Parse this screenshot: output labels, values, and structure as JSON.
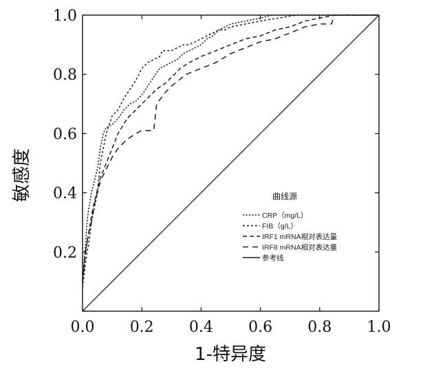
{
  "chart_data": {
    "type": "line",
    "title": "",
    "xlabel": "1-特异度",
    "ylabel": "敏感度",
    "xlim": [
      0,
      1
    ],
    "ylim": [
      0,
      1
    ],
    "xticks": [
      "0.0",
      "0.2",
      "0.4",
      "0.6",
      "0.8",
      "1.0"
    ],
    "yticks": [
      "0.0",
      "0.2",
      "0.4",
      "0.6",
      "0.8",
      "1.0"
    ],
    "grid": false,
    "legend_title": "曲线源",
    "legend_position": "inside-bottom-right",
    "series": [
      {
        "name": "CRP（mg/L）",
        "style": "dotted",
        "x": [
          0,
          0.005,
          0.01,
          0.015,
          0.02,
          0.03,
          0.04,
          0.05,
          0.06,
          0.07,
          0.08,
          0.1,
          0.12,
          0.14,
          0.16,
          0.18,
          0.2,
          0.22,
          0.24,
          0.26,
          0.28,
          0.3,
          0.32,
          0.34,
          0.36,
          0.38,
          0.4,
          0.42,
          0.44,
          0.46,
          0.5,
          0.55,
          0.6,
          0.64,
          0.7,
          1.0
        ],
        "y": [
          0.1,
          0.17,
          0.22,
          0.3,
          0.34,
          0.4,
          0.44,
          0.48,
          0.55,
          0.6,
          0.62,
          0.63,
          0.65,
          0.68,
          0.7,
          0.71,
          0.73,
          0.76,
          0.79,
          0.82,
          0.83,
          0.84,
          0.85,
          0.87,
          0.88,
          0.89,
          0.9,
          0.92,
          0.93,
          0.95,
          0.97,
          0.98,
          0.99,
          1.0,
          1.0,
          1.0
        ]
      },
      {
        "name": "FIB（g/L）",
        "style": "dash-dot",
        "x": [
          0,
          0.005,
          0.01,
          0.015,
          0.02,
          0.03,
          0.04,
          0.05,
          0.06,
          0.08,
          0.1,
          0.12,
          0.14,
          0.16,
          0.18,
          0.2,
          0.22,
          0.24,
          0.26,
          0.27,
          0.28,
          0.3,
          0.32,
          0.34,
          0.36,
          0.38,
          0.4,
          0.42,
          0.44,
          0.46,
          0.48,
          0.5,
          0.55,
          0.6,
          0.66,
          0.72,
          1.0
        ],
        "y": [
          0.08,
          0.12,
          0.16,
          0.2,
          0.22,
          0.3,
          0.35,
          0.4,
          0.5,
          0.6,
          0.66,
          0.68,
          0.72,
          0.75,
          0.78,
          0.82,
          0.84,
          0.85,
          0.86,
          0.88,
          0.88,
          0.88,
          0.89,
          0.9,
          0.9,
          0.91,
          0.92,
          0.93,
          0.94,
          0.95,
          0.95,
          0.96,
          0.97,
          0.98,
          0.99,
          1.0,
          1.0
        ]
      },
      {
        "name": "IRF1 mRNA相对表达量",
        "style": "dashed",
        "x": [
          0,
          0.01,
          0.02,
          0.03,
          0.04,
          0.05,
          0.06,
          0.08,
          0.1,
          0.12,
          0.15,
          0.18,
          0.2,
          0.22,
          0.25,
          0.28,
          0.3,
          0.33,
          0.36,
          0.4,
          0.45,
          0.5,
          0.55,
          0.6,
          0.65,
          0.7,
          0.75,
          0.8,
          0.85,
          1.0
        ],
        "y": [
          0.1,
          0.2,
          0.26,
          0.32,
          0.37,
          0.41,
          0.45,
          0.5,
          0.55,
          0.6,
          0.65,
          0.68,
          0.7,
          0.72,
          0.75,
          0.77,
          0.79,
          0.82,
          0.84,
          0.86,
          0.88,
          0.9,
          0.92,
          0.93,
          0.95,
          0.96,
          0.98,
          0.99,
          1.0,
          1.0
        ]
      },
      {
        "name": "IRF8 mRNA相对表达量",
        "style": "long-dash",
        "x": [
          0,
          0.01,
          0.02,
          0.03,
          0.04,
          0.05,
          0.06,
          0.08,
          0.1,
          0.12,
          0.15,
          0.18,
          0.2,
          0.24,
          0.25,
          0.28,
          0.3,
          0.35,
          0.4,
          0.45,
          0.5,
          0.55,
          0.6,
          0.65,
          0.7,
          0.75,
          0.8,
          0.84,
          0.85,
          1.0
        ],
        "y": [
          0.1,
          0.2,
          0.26,
          0.3,
          0.36,
          0.4,
          0.44,
          0.48,
          0.52,
          0.55,
          0.58,
          0.6,
          0.61,
          0.61,
          0.7,
          0.74,
          0.76,
          0.8,
          0.82,
          0.84,
          0.87,
          0.89,
          0.91,
          0.92,
          0.94,
          0.96,
          0.97,
          0.97,
          1.0,
          1.0
        ]
      },
      {
        "name": "参考线",
        "style": "solid",
        "x": [
          0,
          1
        ],
        "y": [
          0,
          1
        ]
      }
    ]
  }
}
